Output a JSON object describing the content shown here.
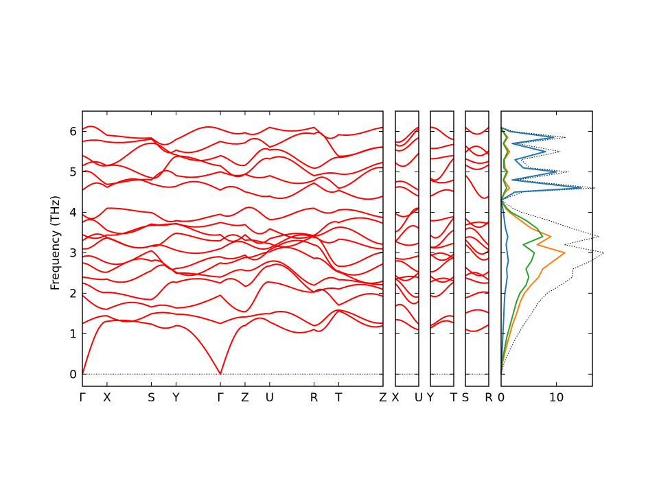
{
  "colors": {
    "bands": "#ff0000",
    "zero_line": "#0000cc",
    "dos_series": [
      "#1f77b4",
      "#ff7f0e",
      "#2ca02c"
    ],
    "dos_total": "#000000"
  },
  "chart_data": {
    "type": "line",
    "ylabel": "Frequency (THz)",
    "ylim": [
      -0.3,
      6.5
    ],
    "yticks": [
      "0",
      "1",
      "2",
      "3",
      "4",
      "5",
      "6"
    ],
    "grid": false,
    "legend": "none",
    "band_panels": [
      {
        "segments": [
          {
            "labels": [
              "Γ",
              "X"
            ],
            "length": 1.0
          },
          {
            "labels": [
              "X",
              "S"
            ],
            "length": 1.8
          },
          {
            "labels": [
              "S",
              "Y"
            ],
            "length": 1.0
          },
          {
            "labels": [
              "Y",
              "Γ"
            ],
            "length": 1.8
          },
          {
            "labels": [
              "Γ",
              "Z"
            ],
            "length": 1.0
          },
          {
            "labels": [
              "Z",
              "U"
            ],
            "length": 1.0
          },
          {
            "labels": [
              "U",
              "R"
            ],
            "length": 1.8
          },
          {
            "labels": [
              "R",
              "T"
            ],
            "length": 1.0
          },
          {
            "labels": [
              "T",
              "Z"
            ],
            "length": 1.8
          }
        ],
        "tick_labels": [
          "Γ",
          "X",
          "S",
          "Y",
          "Γ",
          "Z",
          "U",
          "R",
          "T",
          "Z"
        ]
      },
      {
        "segments": [
          {
            "labels": [
              "X",
              "U"
            ],
            "length": 1.0
          }
        ],
        "tick_labels": [
          "X",
          "U"
        ]
      },
      {
        "segments": [
          {
            "labels": [
              "Y",
              "T"
            ],
            "length": 1.0
          }
        ],
        "tick_labels": [
          "Y",
          "T"
        ]
      },
      {
        "segments": [
          {
            "labels": [
              "S",
              "R"
            ],
            "length": 1.0
          }
        ],
        "tick_labels": [
          "S",
          "R"
        ]
      }
    ],
    "gamma_endpoint_bands": [
      0,
      1.25,
      1.95,
      2.25,
      2.4,
      2.75,
      2.9,
      3.1,
      3.3,
      3.45,
      3.75,
      3.95,
      4.55,
      5.0,
      5.15,
      5.4,
      5.75,
      6.05
    ],
    "dos": {
      "xticks": [
        "0",
        "10"
      ],
      "xlim": [
        0,
        16.5
      ],
      "frequency": [
        0,
        0.3,
        0.6,
        0.9,
        1.2,
        1.5,
        1.8,
        2.0,
        2.2,
        2.4,
        2.6,
        2.8,
        3.0,
        3.2,
        3.4,
        3.6,
        3.8,
        4.0,
        4.1,
        4.3,
        4.5,
        4.6,
        4.8,
        5.0,
        5.1,
        5.3,
        5.5,
        5.7,
        5.85,
        6.0,
        6.1
      ],
      "series": [
        {
          "values": [
            0,
            0.1,
            0.2,
            0.3,
            0.4,
            0.5,
            0.6,
            0.7,
            0.9,
            1.1,
            1.0,
            1.3,
            1.1,
            0.9,
            1.2,
            0.8,
            0.6,
            0.4,
            0.3,
            0,
            2.5,
            14.5,
            2.0,
            10.0,
            4.0,
            2.5,
            8.0,
            2.0,
            9.5,
            1.5,
            0
          ]
        },
        {
          "values": [
            0,
            0.3,
            0.8,
            1.4,
            2.0,
            2.8,
            3.5,
            4.2,
            5.4,
            6.8,
            7.5,
            9.5,
            11.5,
            6.5,
            9.0,
            5.5,
            3.5,
            1.5,
            0.8,
            0,
            0.8,
            1.5,
            0.5,
            1.2,
            0.7,
            0.6,
            1.5,
            0.5,
            1.2,
            0.4,
            0
          ]
        },
        {
          "values": [
            0,
            0.2,
            0.6,
            1.0,
            1.6,
            2.2,
            2.8,
            3.4,
            4.5,
            5.0,
            4.5,
            5.5,
            6.0,
            4.0,
            7.5,
            6.5,
            4.5,
            1.8,
            1.0,
            0,
            0.6,
            1.0,
            0.4,
            1.0,
            0.5,
            0.5,
            1.2,
            0.4,
            1.0,
            0.3,
            0
          ]
        },
        {
          "values": [
            0,
            0.6,
            1.6,
            2.7,
            4.0,
            5.5,
            6.9,
            8.3,
            10.8,
            12.9,
            13.0,
            16.3,
            18.6,
            11.4,
            17.7,
            12.8,
            8.6,
            3.7,
            2.1,
            0,
            3.9,
            17.0,
            2.9,
            12.2,
            5.2,
            3.6,
            10.7,
            2.9,
            11.7,
            2.2,
            0
          ]
        }
      ]
    }
  }
}
